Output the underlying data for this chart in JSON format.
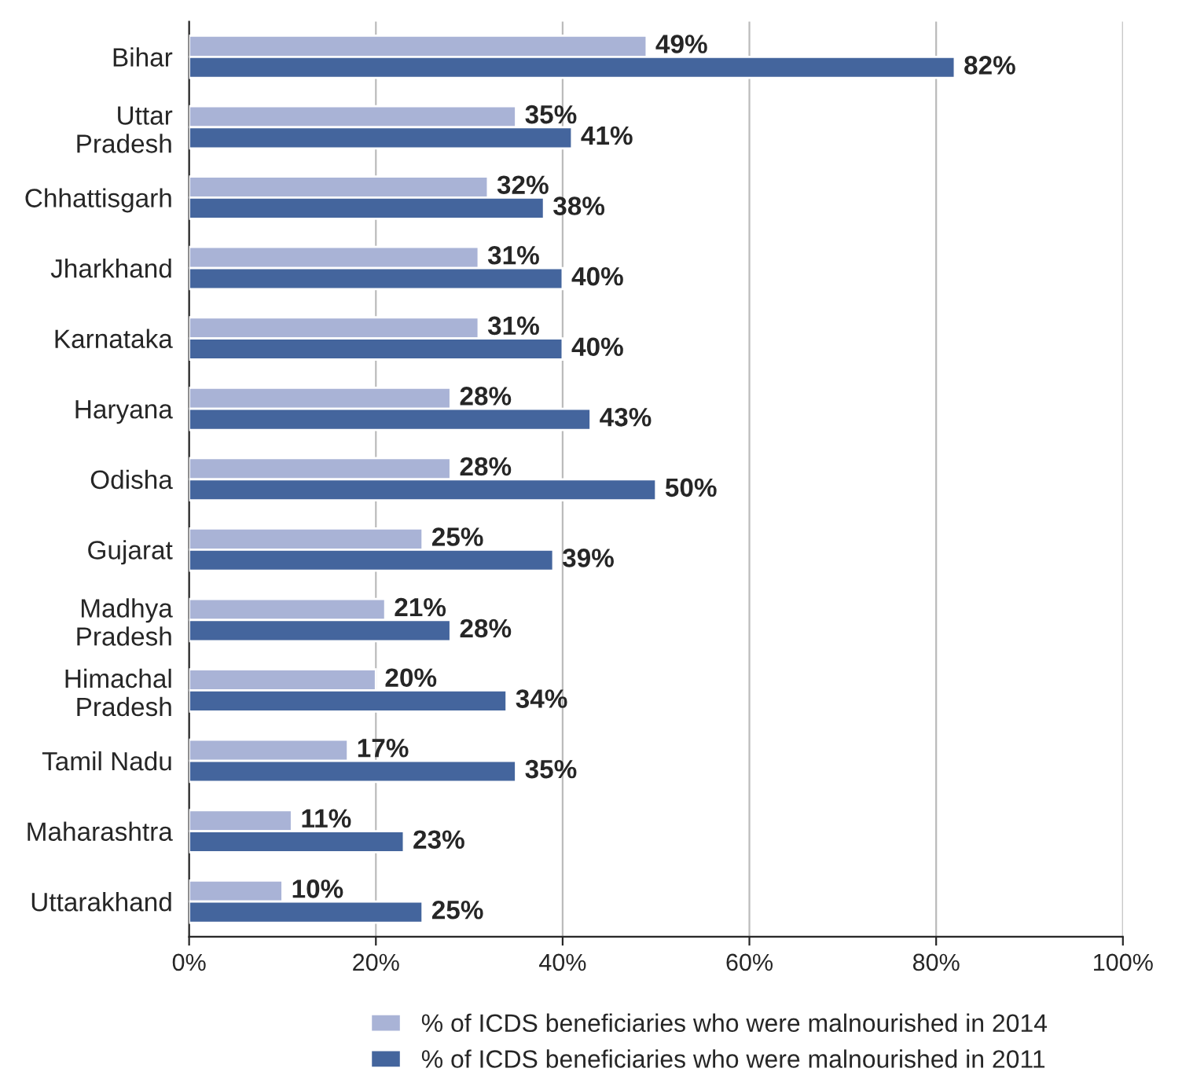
{
  "chart_data": {
    "type": "bar",
    "orientation": "horizontal",
    "categories": [
      "Bihar",
      "Uttar\nPradesh",
      "Chhattisgarh",
      "Jharkhand",
      "Karnataka",
      "Haryana",
      "Odisha",
      "Gujarat",
      "Madhya\nPradesh",
      "Himachal\nPradesh",
      "Tamil Nadu",
      "Maharashtra",
      "Uttarakhand"
    ],
    "series": [
      {
        "name": "% of ICDS beneficiaries who were malnourished in 2014",
        "color": "#a9b3d6",
        "values": [
          49,
          35,
          32,
          31,
          31,
          28,
          28,
          25,
          21,
          20,
          17,
          11,
          10
        ],
        "value_labels": [
          "49%",
          "35%",
          "32%",
          "31%",
          "31%",
          "28%",
          "28%",
          "25%",
          "21%",
          "20%",
          "17%",
          "11%",
          "10%"
        ]
      },
      {
        "name": "% of ICDS beneficiaries who were malnourished in 2011",
        "color": "#44659d",
        "values": [
          82,
          41,
          38,
          40,
          40,
          43,
          50,
          39,
          28,
          34,
          35,
          23,
          25
        ],
        "value_labels": [
          "82%",
          "41%",
          "38%",
          "40%",
          "40%",
          "43%",
          "50%",
          "39%",
          "28%",
          "34%",
          "35%",
          "23%",
          "25%"
        ]
      }
    ],
    "xlim": [
      0,
      100
    ],
    "xticks": [
      {
        "value": 0,
        "label": "0%"
      },
      {
        "value": 20,
        "label": "20%"
      },
      {
        "value": 40,
        "label": "40%"
      },
      {
        "value": 60,
        "label": "60%"
      },
      {
        "value": 80,
        "label": "80%"
      },
      {
        "value": 100,
        "label": "100%"
      }
    ],
    "grid": "x",
    "legend": "bottom"
  }
}
